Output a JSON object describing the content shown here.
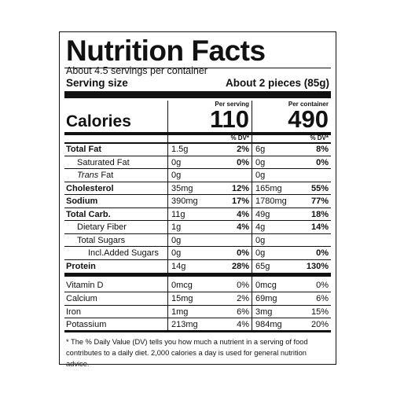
{
  "header": {
    "title": "Nutrition Facts",
    "servings": "About 4.5 servings per container",
    "serving_size_label": "Serving size",
    "serving_size": "About 2 pieces (85g)"
  },
  "calories": {
    "label": "Calories",
    "per_serving_label": "Per serving",
    "per_serving": "110",
    "per_container_label": "Per container",
    "per_container": "490"
  },
  "dv_header": [
    "% DV*",
    "% DV*"
  ],
  "nutrients": [
    [
      "Total Fat",
      "1.5g",
      "2%",
      "6g",
      "8%"
    ],
    [
      "Saturated Fat",
      "0g",
      "0%",
      "0g",
      "0%"
    ],
    [
      "Trans Fat",
      "0g",
      null,
      "0g",
      null
    ],
    [
      "Cholesterol",
      "35mg",
      "12%",
      "165mg",
      "55%"
    ],
    [
      "Sodium",
      "390mg",
      "17%",
      "1780mg",
      "77%"
    ],
    [
      "Total Carb.",
      "11g",
      "4%",
      "49g",
      "18%"
    ],
    [
      "Dietary Fiber",
      "1g",
      "4%",
      "4g",
      "14%"
    ],
    [
      "Total Sugars",
      "0g",
      null,
      "0g",
      null
    ],
    [
      "Incl.Added Sugars",
      "0g",
      "0%",
      "0g",
      "0%"
    ],
    [
      "Protein",
      "14g",
      "28%",
      "65g",
      "130%"
    ]
  ],
  "vitamins": [
    [
      "Vitamin D",
      "0mcg",
      "0%",
      "0mcg",
      "0%"
    ],
    [
      "Calcium",
      "15mg",
      "2%",
      "69mg",
      "6%"
    ],
    [
      "Iron",
      "1mg",
      "6%",
      "3mg",
      "15%"
    ],
    [
      "Potassium",
      "213mg",
      "4%",
      "984mg",
      "20%"
    ]
  ],
  "footnote": "* The % Daily Value (DV) tells you how much a nutrient in a serving of food contributes to a daily diet. 2,000 calories a day is used for general nutrition advice."
}
